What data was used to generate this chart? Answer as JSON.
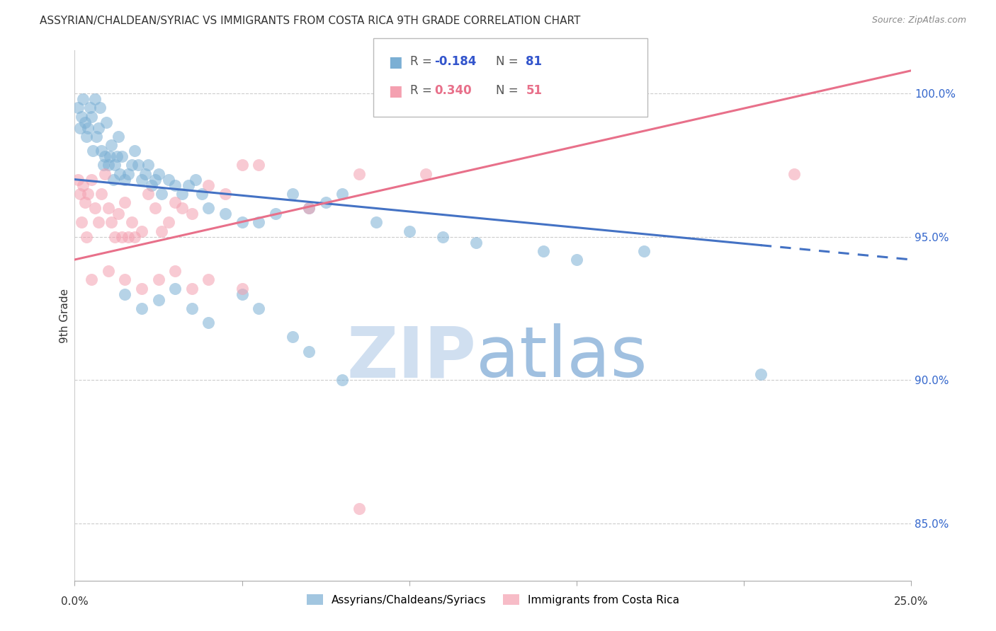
{
  "title": "ASSYRIAN/CHALDEAN/SYRIAC VS IMMIGRANTS FROM COSTA RICA 9TH GRADE CORRELATION CHART",
  "source": "Source: ZipAtlas.com",
  "ylabel": "9th Grade",
  "x_min": 0.0,
  "x_max": 25.0,
  "y_min": 83.0,
  "y_max": 101.5,
  "yticks": [
    85.0,
    90.0,
    95.0,
    100.0
  ],
  "ytick_labels": [
    "85.0%",
    "90.0%",
    "95.0%",
    "100.0%"
  ],
  "blue_label": "Assyrians/Chaldeans/Syriacs",
  "pink_label": "Immigrants from Costa Rica",
  "blue_color": "#7BAFD4",
  "pink_color": "#F4A0B0",
  "blue_line_color": "#4472C4",
  "pink_line_color": "#E8708A",
  "blue_line_y0": 97.0,
  "blue_line_y1": 94.2,
  "pink_line_y0": 94.2,
  "pink_line_y1": 100.8,
  "blue_solid_end": 20.5,
  "blue_scatter_x": [
    0.1,
    0.15,
    0.2,
    0.25,
    0.3,
    0.35,
    0.4,
    0.45,
    0.5,
    0.55,
    0.6,
    0.65,
    0.7,
    0.75,
    0.8,
    0.85,
    0.9,
    0.95,
    1.0,
    1.05,
    1.1,
    1.15,
    1.2,
    1.25,
    1.3,
    1.35,
    1.4,
    1.5,
    1.6,
    1.7,
    1.8,
    1.9,
    2.0,
    2.1,
    2.2,
    2.3,
    2.4,
    2.5,
    2.6,
    2.8,
    3.0,
    3.2,
    3.4,
    3.6,
    3.8,
    4.0,
    4.5,
    5.0,
    5.5,
    6.0,
    6.5,
    7.0,
    7.5,
    8.0,
    9.0,
    10.0,
    11.0,
    12.0,
    14.0,
    15.0,
    17.0,
    20.5
  ],
  "blue_scatter_y": [
    99.5,
    98.8,
    99.2,
    99.8,
    99.0,
    98.5,
    98.8,
    99.5,
    99.2,
    98.0,
    99.8,
    98.5,
    98.8,
    99.5,
    98.0,
    97.5,
    97.8,
    99.0,
    97.5,
    97.8,
    98.2,
    97.0,
    97.5,
    97.8,
    98.5,
    97.2,
    97.8,
    97.0,
    97.2,
    97.5,
    98.0,
    97.5,
    97.0,
    97.2,
    97.5,
    96.8,
    97.0,
    97.2,
    96.5,
    97.0,
    96.8,
    96.5,
    96.8,
    97.0,
    96.5,
    96.0,
    95.8,
    95.5,
    95.5,
    95.8,
    96.5,
    96.0,
    96.2,
    96.5,
    95.5,
    95.2,
    95.0,
    94.8,
    94.5,
    94.2,
    94.5,
    90.2
  ],
  "pink_scatter_x": [
    0.1,
    0.15,
    0.2,
    0.25,
    0.3,
    0.35,
    0.4,
    0.5,
    0.6,
    0.7,
    0.8,
    0.9,
    1.0,
    1.1,
    1.2,
    1.3,
    1.4,
    1.5,
    1.6,
    1.7,
    1.8,
    2.0,
    2.2,
    2.4,
    2.6,
    2.8,
    3.0,
    3.2,
    3.5,
    4.0,
    4.5,
    5.0,
    5.5,
    7.0,
    8.5,
    10.5,
    21.5
  ],
  "pink_scatter_y": [
    97.0,
    96.5,
    95.5,
    96.8,
    96.2,
    95.0,
    96.5,
    97.0,
    96.0,
    95.5,
    96.5,
    97.2,
    96.0,
    95.5,
    95.0,
    95.8,
    95.0,
    96.2,
    95.0,
    95.5,
    95.0,
    95.2,
    96.5,
    96.0,
    95.2,
    95.5,
    96.2,
    96.0,
    95.8,
    96.8,
    96.5,
    97.5,
    97.5,
    96.0,
    97.2,
    97.2,
    97.2
  ],
  "extra_blue_low_x": [
    1.5,
    2.0,
    2.5,
    3.0,
    3.5,
    4.0,
    5.0,
    5.5,
    6.5,
    7.0,
    8.0
  ],
  "extra_blue_low_y": [
    93.0,
    92.5,
    92.8,
    93.2,
    92.5,
    92.0,
    93.0,
    92.5,
    91.5,
    91.0,
    90.0
  ],
  "extra_pink_low_x": [
    0.5,
    1.0,
    1.5,
    2.0,
    2.5,
    3.0,
    3.5,
    4.0,
    5.0,
    8.5
  ],
  "extra_pink_low_y": [
    93.5,
    93.8,
    93.5,
    93.2,
    93.5,
    93.8,
    93.2,
    93.5,
    93.2,
    85.5
  ],
  "watermark_zip_color": "#D0DFF0",
  "watermark_atlas_color": "#A0C0E0"
}
